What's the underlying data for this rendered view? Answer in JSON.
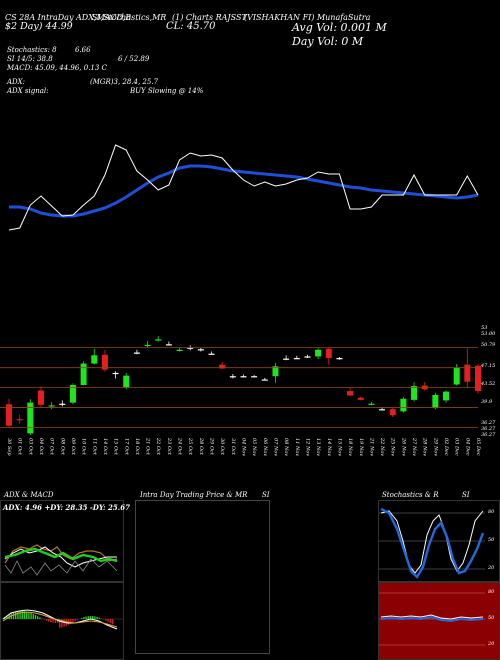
{
  "header": {
    "chart_label": "CS 28A IntraDay ADX,MACD,B",
    "stoch_label": "SI,Stochastics,MR",
    "ticker_label": "(1) Charts RAJSST",
    "company_label": "(VISHAKHAN FI) MunafaSutra",
    "open_label": "$2 Day)",
    "open_value": "44.99",
    "close_label": "CL: 45.70",
    "avg_vol": "Avg Vol: 0.001 M",
    "day_vol": "Day Vol: 0   M"
  },
  "indicators": {
    "stochastics_line": "Stochastics: 8",
    "stochastics_value": "6.66",
    "si_line": "SI 14/5: 38.8",
    "si_value": "6 / 52.89",
    "macd_line": "MACD: 45.09, 44.96, 0.13 C",
    "adx_line": "ADX:",
    "adx_value": "(MGR)3, 28.4, 25.7",
    "adx_signal_label": "ADX signal:",
    "adx_signal_value": "BUY Slowing @ 14%"
  },
  "price_levels": [
    "53",
    "53.00",
    "50.79",
    "47.15",
    "43.52",
    "39.9",
    "36.27",
    "36.27",
    "36.27"
  ],
  "date_labels": [
    "30 Sep",
    "01 Oct",
    "03 Oct",
    "04 Oct",
    "07 Oct",
    "08 Oct",
    "09 Oct",
    "10 Oct",
    "11 Oct",
    "14 Oct",
    "15 Oct",
    "17 Oct",
    "18 Oct",
    "21 Oct",
    "22 Oct",
    "23 Oct",
    "24 Oct",
    "25 Oct",
    "28 Oct",
    "29 Oct",
    "30 Oct",
    "31 Oct",
    "04 Nov",
    "05 Nov",
    "06 Nov",
    "07 Nov",
    "08 Nov",
    "11 Nov",
    "12 Nov",
    "13 Nov",
    "14 Nov",
    "15 Nov",
    "18 Nov",
    "19 Nov",
    "21 Nov",
    "22 Nov",
    "25 Nov",
    "26 Nov",
    "27 Nov",
    "28 Nov",
    "29 Nov",
    "02 Dec",
    "03 Dec",
    "04 Dec",
    "05 Dec"
  ],
  "panels": {
    "adx_title": "ADX & MACD",
    "adx_values": "ADX: 4.96  +DY: 28.35 -DY: 25.67",
    "intraday_title": "Intra Day Trading Price & MR",
    "intraday_suffix": "SI",
    "stoch_title": "Stochastics & R",
    "stoch_suffix": "SI",
    "stoch_levels": [
      "80",
      "50",
      "20"
    ],
    "si_levels": [
      "80",
      "50",
      "20"
    ]
  },
  "chart_data": {
    "type": "candlestick",
    "colors": {
      "up": "#1ee61e",
      "down": "#e61e1e",
      "flat": "#ffffff",
      "ema": "#1f4fd6",
      "price_line": "#ffffff",
      "level_line": "#8a4a12"
    },
    "ylim": [
      34,
      54
    ],
    "candles": [
      {
        "o": 40.5,
        "h": 41.5,
        "l": 36.2,
        "c": 36.6
      },
      {
        "o": 37.8,
        "h": 38.6,
        "l": 37.0,
        "c": 37.6
      },
      {
        "o": 35.2,
        "h": 41.4,
        "l": 34.9,
        "c": 40.8
      },
      {
        "o": 43.0,
        "h": 43.8,
        "l": 40.0,
        "c": 40.4
      },
      {
        "o": 40.1,
        "h": 40.9,
        "l": 39.6,
        "c": 40.3
      },
      {
        "o": 40.6,
        "h": 41.2,
        "l": 40.1,
        "c": 40.6
      },
      {
        "o": 40.8,
        "h": 44.3,
        "l": 40.5,
        "c": 44.0
      },
      {
        "o": 44.0,
        "h": 48.3,
        "l": 43.9,
        "c": 47.9
      },
      {
        "o": 47.9,
        "h": 50.6,
        "l": 47.7,
        "c": 49.4
      },
      {
        "o": 49.5,
        "h": 50.4,
        "l": 46.4,
        "c": 46.8
      },
      {
        "o": 46.2,
        "h": 46.5,
        "l": 45.2,
        "c": 46.2
      },
      {
        "o": 43.6,
        "h": 46.2,
        "l": 43.2,
        "c": 45.7
      },
      {
        "o": 49.9,
        "h": 50.4,
        "l": 49.6,
        "c": 49.9
      },
      {
        "o": 51.2,
        "h": 52.0,
        "l": 50.8,
        "c": 51.3
      },
      {
        "o": 52.2,
        "h": 52.9,
        "l": 51.9,
        "c": 52.3
      },
      {
        "o": 51.4,
        "h": 51.9,
        "l": 51.2,
        "c": 51.4
      },
      {
        "o": 50.3,
        "h": 50.7,
        "l": 50.1,
        "c": 50.4
      },
      {
        "o": 50.8,
        "h": 51.2,
        "l": 50.3,
        "c": 50.8
      },
      {
        "o": 50.5,
        "h": 50.8,
        "l": 50.1,
        "c": 50.5
      },
      {
        "o": 49.7,
        "h": 50.1,
        "l": 49.6,
        "c": 49.7
      },
      {
        "o": 47.7,
        "h": 48.2,
        "l": 46.9,
        "c": 47.0
      },
      {
        "o": 45.6,
        "h": 46.0,
        "l": 45.2,
        "c": 45.6
      },
      {
        "o": 45.6,
        "h": 45.9,
        "l": 45.4,
        "c": 45.6
      },
      {
        "o": 45.6,
        "h": 45.8,
        "l": 45.4,
        "c": 45.6
      },
      {
        "o": 45.0,
        "h": 45.3,
        "l": 44.9,
        "c": 45.0
      },
      {
        "o": 45.6,
        "h": 48.0,
        "l": 44.4,
        "c": 47.4
      },
      {
        "o": 48.8,
        "h": 49.4,
        "l": 48.5,
        "c": 48.8
      },
      {
        "o": 48.9,
        "h": 49.3,
        "l": 48.7,
        "c": 48.9
      },
      {
        "o": 49.2,
        "h": 49.5,
        "l": 48.9,
        "c": 49.2
      },
      {
        "o": 49.2,
        "h": 50.7,
        "l": 48.7,
        "c": 50.4
      },
      {
        "o": 50.6,
        "h": 50.8,
        "l": 47.7,
        "c": 48.9
      },
      {
        "o": 48.9,
        "h": 49.1,
        "l": 48.6,
        "c": 48.9
      },
      {
        "o": 42.9,
        "h": 43.6,
        "l": 42.0,
        "c": 42.1
      },
      {
        "o": 41.7,
        "h": 41.9,
        "l": 41.2,
        "c": 41.3
      },
      {
        "o": 40.5,
        "h": 40.9,
        "l": 40.3,
        "c": 40.6
      },
      {
        "o": 39.6,
        "h": 40.0,
        "l": 39.4,
        "c": 39.6
      },
      {
        "o": 39.6,
        "h": 39.9,
        "l": 38.2,
        "c": 38.5
      },
      {
        "o": 39.2,
        "h": 41.8,
        "l": 39.0,
        "c": 41.5
      },
      {
        "o": 41.3,
        "h": 44.5,
        "l": 41.0,
        "c": 43.8
      },
      {
        "o": 43.9,
        "h": 44.5,
        "l": 43.0,
        "c": 43.2
      },
      {
        "o": 39.8,
        "h": 42.6,
        "l": 39.6,
        "c": 42.2
      },
      {
        "o": 41.2,
        "h": 43.0,
        "l": 40.8,
        "c": 42.8
      },
      {
        "o": 44.1,
        "h": 47.8,
        "l": 43.9,
        "c": 47.2
      },
      {
        "o": 47.7,
        "h": 50.6,
        "l": 43.5,
        "c": 44.6
      },
      {
        "o": 47.5,
        "h": 47.8,
        "l": 42.4,
        "c": 42.9
      }
    ],
    "ema_curve_y": [
      207,
      207,
      209,
      213,
      215,
      216,
      216,
      214,
      211,
      208,
      203,
      197,
      190,
      183,
      177,
      173,
      168,
      166,
      166,
      167,
      169,
      171,
      172,
      173,
      174,
      175,
      176,
      177,
      179,
      181,
      183,
      185,
      187,
      188,
      190,
      191,
      192,
      193,
      194,
      195,
      196,
      197,
      198,
      197,
      195
    ],
    "price_curve_y": [
      230,
      228,
      205,
      196,
      206,
      216,
      215,
      205,
      196,
      175,
      145,
      150,
      171,
      180,
      190,
      185,
      160,
      153,
      156,
      155,
      158,
      170,
      180,
      186,
      182,
      186,
      184,
      180,
      178,
      172,
      174,
      174,
      209,
      209,
      207,
      195,
      195,
      195,
      175,
      195,
      195,
      195,
      195,
      176,
      195
    ],
    "level_prices": [
      50.79,
      47.15,
      43.52,
      39.9,
      36.27
    ]
  }
}
